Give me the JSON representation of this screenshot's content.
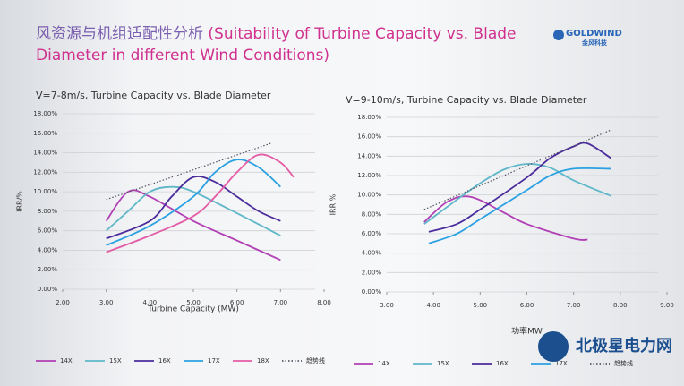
{
  "header": {
    "title_cn": "风资源与机组适配性分析",
    "title_en": "(Suitability of Turbine Capacity vs. Blade Diameter in different Wind Conditions)",
    "logo": "GOLDWIND",
    "logo_cn": "金风科技"
  },
  "watermark": "北极星电力网",
  "chart_data": [
    {
      "type": "line",
      "title": "V=7-8m/s, Turbine Capacity vs. Blade Diameter",
      "x_label": "Turbine Capacity (MW)",
      "y_label": "IRR/%",
      "grid": true,
      "xlim": [
        2,
        8
      ],
      "xticks": [
        {
          "value": 2,
          "label": "2.00"
        },
        {
          "value": 3,
          "label": "3.00"
        },
        {
          "value": 4,
          "label": "4.00"
        },
        {
          "value": 5,
          "label": "5.00"
        },
        {
          "value": 6,
          "label": "6.00"
        },
        {
          "value": 7,
          "label": "7.00"
        },
        {
          "value": 8,
          "label": "8.00"
        }
      ],
      "ylim": [
        0,
        18
      ],
      "yticks": [
        {
          "value": 0,
          "label": "0.00%"
        },
        {
          "value": 2,
          "label": "2.00%"
        },
        {
          "value": 4,
          "label": "4.00%"
        },
        {
          "value": 6,
          "label": "6.00%"
        },
        {
          "value": 8,
          "label": "8.00%"
        },
        {
          "value": 10,
          "label": "10.00%"
        },
        {
          "value": 12,
          "label": "12.00%"
        },
        {
          "value": 14,
          "label": "14.00%"
        },
        {
          "value": 16,
          "label": "16.00%"
        },
        {
          "value": 18,
          "label": "18.00%"
        }
      ],
      "series": [
        {
          "name": "14X",
          "color": "#b13fb5",
          "x": [
            3.0,
            3.5,
            4.0,
            5.0,
            6.0,
            7.0
          ],
          "values": [
            7.0,
            10.0,
            9.5,
            7.0,
            5.0,
            3.0
          ]
        },
        {
          "name": "15X",
          "color": "#5fb7c9",
          "x": [
            3.0,
            3.5,
            4.0,
            4.5,
            5.0,
            6.0,
            7.0
          ],
          "values": [
            6.0,
            8.0,
            10.0,
            10.5,
            10.0,
            7.8,
            5.5
          ]
        },
        {
          "name": "16X",
          "color": "#4b2c9c",
          "x": [
            3.0,
            4.0,
            4.5,
            5.0,
            5.5,
            6.0,
            6.5,
            7.0
          ],
          "values": [
            5.2,
            7.0,
            9.5,
            11.5,
            11.0,
            9.5,
            8.0,
            7.0
          ]
        },
        {
          "name": "17X",
          "color": "#2ba1e2",
          "x": [
            3.0,
            4.0,
            5.0,
            5.5,
            6.0,
            6.5,
            7.0
          ],
          "values": [
            4.5,
            6.5,
            9.5,
            12.0,
            13.3,
            12.5,
            10.5
          ]
        },
        {
          "name": "18X",
          "color": "#e45ca5",
          "x": [
            3.0,
            4.0,
            5.0,
            5.5,
            6.0,
            6.5,
            7.0,
            7.3
          ],
          "values": [
            3.8,
            5.5,
            7.5,
            9.5,
            12.0,
            13.8,
            13.0,
            11.5
          ]
        },
        {
          "name": "趋势线",
          "color": "#555566",
          "style": "dotted",
          "x": [
            3.0,
            6.8
          ],
          "values": [
            9.2,
            15.0
          ]
        }
      ]
    },
    {
      "type": "line",
      "title": "V=9-10m/s, Turbine Capacity vs. Blade Diameter",
      "x_label": "功率MW",
      "y_label": "IRR %",
      "grid": true,
      "xlim": [
        3,
        9
      ],
      "xticks": [
        {
          "value": 3,
          "label": "3.00"
        },
        {
          "value": 4,
          "label": "4.00"
        },
        {
          "value": 5,
          "label": "5.00"
        },
        {
          "value": 6,
          "label": "6.00"
        },
        {
          "value": 7,
          "label": "7.00"
        },
        {
          "value": 8,
          "label": "8.00"
        },
        {
          "value": 9,
          "label": "9.00"
        }
      ],
      "ylim": [
        0,
        18
      ],
      "yticks": [
        {
          "value": 0,
          "label": "0.00%"
        },
        {
          "value": 2,
          "label": "2.00%"
        },
        {
          "value": 4,
          "label": "4.00%"
        },
        {
          "value": 6,
          "label": "6.00%"
        },
        {
          "value": 8,
          "label": "8.00%"
        },
        {
          "value": 10,
          "label": "10.00%"
        },
        {
          "value": 12,
          "label": "12.00%"
        },
        {
          "value": 14,
          "label": "14.00%"
        },
        {
          "value": 16,
          "label": "16.00%"
        },
        {
          "value": 18,
          "label": "18.00%"
        }
      ],
      "series": [
        {
          "name": "14X",
          "color": "#b13fb5",
          "x": [
            3.8,
            4.3,
            4.8,
            5.5,
            6.0,
            7.0,
            7.3
          ],
          "values": [
            7.2,
            9.3,
            9.8,
            8.2,
            7.0,
            5.5,
            5.4
          ]
        },
        {
          "name": "15X",
          "color": "#5fb7c9",
          "x": [
            3.8,
            4.5,
            5.0,
            5.5,
            6.0,
            6.5,
            7.0,
            7.8
          ],
          "values": [
            7.0,
            9.5,
            11.2,
            12.6,
            13.2,
            12.8,
            11.5,
            9.9
          ]
        },
        {
          "name": "16X",
          "color": "#4b2c9c",
          "x": [
            3.9,
            4.5,
            5.0,
            6.0,
            6.5,
            7.0,
            7.3,
            7.8
          ],
          "values": [
            6.2,
            7.0,
            8.5,
            11.8,
            13.8,
            15.0,
            15.3,
            13.8
          ]
        },
        {
          "name": "17X",
          "color": "#2ba1e2",
          "x": [
            3.9,
            4.5,
            5.0,
            6.0,
            6.5,
            7.0,
            7.8
          ],
          "values": [
            5.0,
            6.0,
            7.5,
            10.5,
            12.0,
            12.7,
            12.7
          ]
        },
        {
          "name": "趋势线",
          "color": "#555566",
          "style": "dotted",
          "x": [
            3.8,
            7.8
          ],
          "values": [
            8.5,
            16.7
          ]
        }
      ]
    }
  ]
}
